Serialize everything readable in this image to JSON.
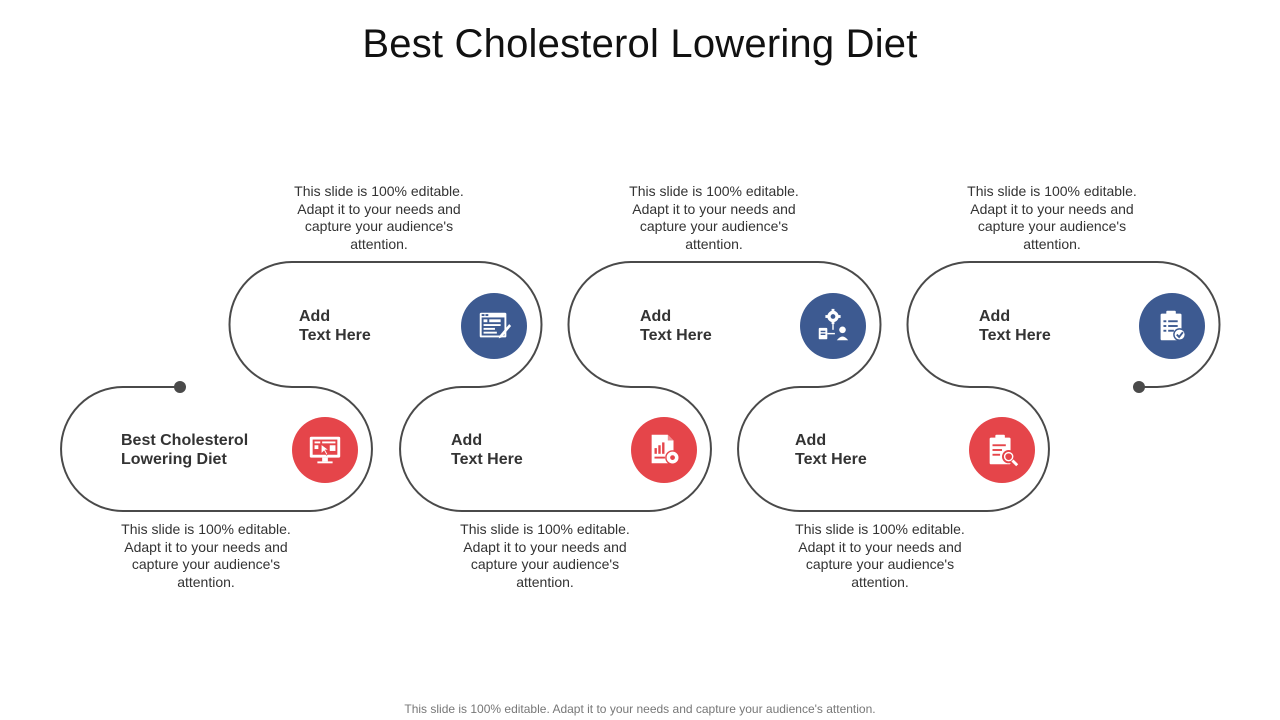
{
  "title": "Best Cholesterol Lowering Diet",
  "footer": "This slide is 100% editable. Adapt it to your needs and capture your audience's attention.",
  "colors": {
    "red": "#e5454a",
    "blue": "#3d5a91",
    "line": "#4a4a4a"
  },
  "steps": [
    {
      "label": "Best Cholesterol\nLowering Diet",
      "icon": "monitor-cursor-icon",
      "color": "red",
      "desc": "This slide is 100% editable. Adapt it to your needs and capture your audience's attention."
    },
    {
      "label": "Add\n Text Here",
      "icon": "browser-pen-icon",
      "color": "blue",
      "desc": "This slide is 100% editable. Adapt it to your needs and capture your audience's attention."
    },
    {
      "label": "Add\n Text Here",
      "icon": "report-gear-icon",
      "color": "red",
      "desc": "This slide is 100% editable. Adapt it to your needs and capture your audience's attention."
    },
    {
      "label": "Add\n Text Here",
      "icon": "gear-people-icon",
      "color": "blue",
      "desc": "This slide is 100% editable. Adapt it to your needs and capture your audience's attention."
    },
    {
      "label": "Add\n Text Here",
      "icon": "clipboard-search-icon",
      "color": "red",
      "desc": "This slide is 100% editable. Adapt it to your needs and capture your audience's attention."
    },
    {
      "label": "Add\n Text Here",
      "icon": "clipboard-check-icon",
      "color": "blue",
      "desc": "This slide is 100% editable. Adapt it to your needs and capture your audience's attention."
    }
  ]
}
